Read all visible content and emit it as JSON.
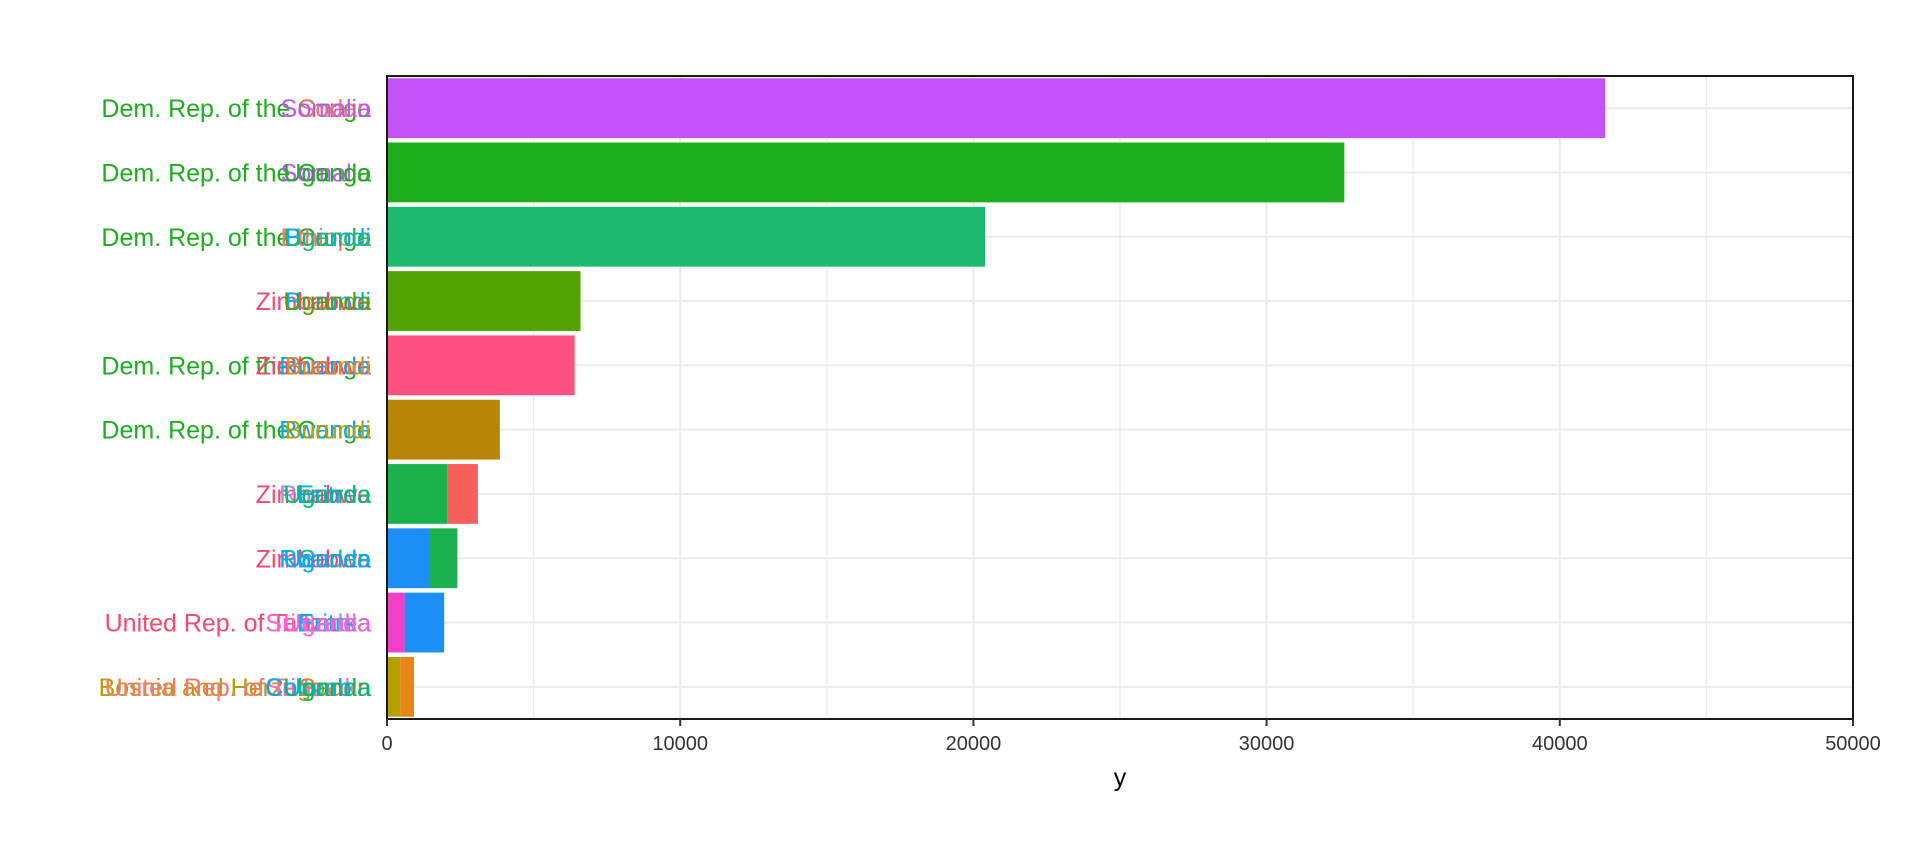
{
  "chart_data": {
    "type": "bar",
    "orientation": "horizontal",
    "stacked": true,
    "xlabel": "y",
    "ylabel": "",
    "title": "",
    "xlim": [
      0,
      50000
    ],
    "x_ticks": [
      "0",
      "10000",
      "20000",
      "30000",
      "40000",
      "50000"
    ],
    "grid": true,
    "legend": "none",
    "rows": [
      {
        "labels": [
          {
            "text": "Bosnia and Herzegovina",
            "color": "#b79f00"
          },
          {
            "text": "United Rep. of Tanzania",
            "color": "#f8766d"
          },
          {
            "text": "Sri Lanka",
            "color": "#fb61d7"
          },
          {
            "text": "Sudan",
            "color": "#e68613"
          },
          {
            "text": "Colombia",
            "color": "#00a9ff"
          },
          {
            "text": "Uganda",
            "color": "#00be67"
          }
        ],
        "segments": [
          {
            "value": 450,
            "color": "#b79f00"
          },
          {
            "value": 470,
            "color": "#e68613"
          }
        ]
      },
      {
        "labels": [
          {
            "text": "United Rep. of Tanzania",
            "color": "#f8476f"
          },
          {
            "text": "Serbia",
            "color": "#9590ff"
          },
          {
            "text": "Sri Lanka",
            "color": "#fb61d7"
          },
          {
            "text": "Eritrea",
            "color": "#00b0f6"
          },
          {
            "text": "Uganda",
            "color": "#fb61d7"
          }
        ],
        "segments": [
          {
            "value": 600,
            "color": "#f13fc8"
          },
          {
            "value": 1350,
            "color": "#1b8ff5"
          }
        ]
      },
      {
        "labels": [
          {
            "text": "Zimbabwe",
            "color": "#f8476f"
          },
          {
            "text": "Sudan",
            "color": "#00c08b"
          },
          {
            "text": "Rwanda",
            "color": "#00a9ff"
          },
          {
            "text": "Uganda",
            "color": "#00a9ff"
          }
        ],
        "segments": [
          {
            "value": 1450,
            "color": "#1b8ff5"
          },
          {
            "value": 950,
            "color": "#1bb24d"
          }
        ]
      },
      {
        "labels": [
          {
            "text": "Zimbabwe",
            "color": "#f8476f"
          },
          {
            "text": "Rwanda",
            "color": "#9590ff"
          },
          {
            "text": "Eritrea",
            "color": "#00a9ff"
          },
          {
            "text": "Uganda",
            "color": "#00be67"
          }
        ],
        "segments": [
          {
            "value": 2050,
            "color": "#1bb24d"
          },
          {
            "value": 1050,
            "color": "#f5605a"
          }
        ]
      },
      {
        "labels": [
          {
            "text": "Dem. Rep. of the Congo",
            "color": "#1cae1c"
          },
          {
            "text": "Rwanda",
            "color": "#00a9ff"
          },
          {
            "text": "Burundi",
            "color": "#b79f00"
          }
        ],
        "segments": [
          {
            "value": 3850,
            "color": "#b88506"
          }
        ]
      },
      {
        "labels": [
          {
            "text": "Dem. Rep. of the Congo",
            "color": "#1cae1c"
          },
          {
            "text": "Zimbabwe",
            "color": "#f8476f"
          },
          {
            "text": "Rwanda",
            "color": "#00a9ff"
          },
          {
            "text": "Burundi",
            "color": "#e68613"
          }
        ],
        "segments": [
          {
            "value": 6400,
            "color": "#fc5181"
          }
        ]
      },
      {
        "labels": [
          {
            "text": "Zimbabwe",
            "color": "#f8476f"
          },
          {
            "text": "Burundi",
            "color": "#00a9ff"
          },
          {
            "text": "Uganda",
            "color": "#53a300"
          }
        ],
        "segments": [
          {
            "value": 6600,
            "color": "#53a300"
          }
        ]
      },
      {
        "labels": [
          {
            "text": "Dem. Rep. of the Congo",
            "color": "#1cae1c"
          },
          {
            "text": "Ethiopia",
            "color": "#f8766d"
          },
          {
            "text": "Burundi",
            "color": "#00a9ff"
          },
          {
            "text": "Uganda",
            "color": "#1bba6e"
          }
        ],
        "segments": [
          {
            "value": 20400,
            "color": "#1bba6e"
          }
        ]
      },
      {
        "labels": [
          {
            "text": "Dem. Rep. of the Congo",
            "color": "#1cae1c"
          },
          {
            "text": "Somalia",
            "color": "#c353f9"
          },
          {
            "text": "Uganda",
            "color": "#1cae1c"
          }
        ],
        "segments": [
          {
            "value": 32650,
            "color": "#1cae1c"
          }
        ]
      },
      {
        "labels": [
          {
            "text": "Dem. Rep. of the Congo",
            "color": "#1cae1c"
          },
          {
            "text": "Sudan",
            "color": "#f8766d"
          },
          {
            "text": "Somalia",
            "color": "#c353f9"
          }
        ],
        "segments": [
          {
            "value": 41550,
            "color": "#c353f9"
          }
        ]
      }
    ]
  }
}
